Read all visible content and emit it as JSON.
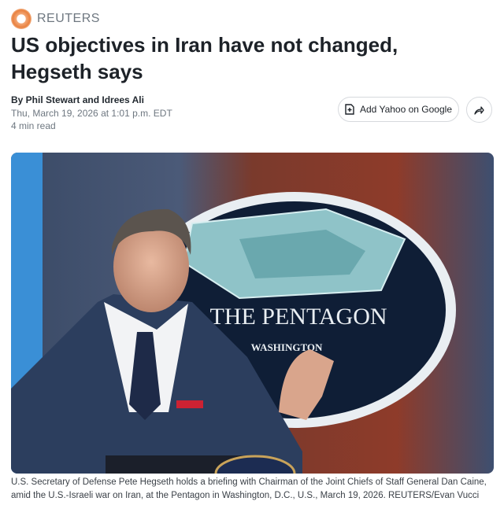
{
  "brand": {
    "name": "REUTERS"
  },
  "article": {
    "title": "US objectives in Iran have not changed, Hegseth says",
    "byline": "By Phil Stewart and Idrees Ali",
    "date": "Thu, March 19, 2026 at 1:01 p.m. EDT",
    "read_time": "4 min read"
  },
  "actions": {
    "add_google_label": "Add Yahoo on Google",
    "add_icon": "add-document-icon",
    "share_icon": "share-arrow-icon"
  },
  "photo": {
    "lettering": {
      "sign_title": "THE PENTAGON",
      "sign_subtitle": "WASHINGTON"
    },
    "caption": "U.S. Secretary of Defense Pete Hegseth holds a briefing with Chairman of the Joint Chiefs of Staff General Dan Caine, amid the U.S.-Israeli war on Iran, at the Pentagon in Washington, D.C., U.S., March 19, 2026. REUTERS/Evan Vucci"
  },
  "colors": {
    "accent_logo": "#e9813f",
    "text": "#1d2228",
    "muted": "#6e7780"
  }
}
